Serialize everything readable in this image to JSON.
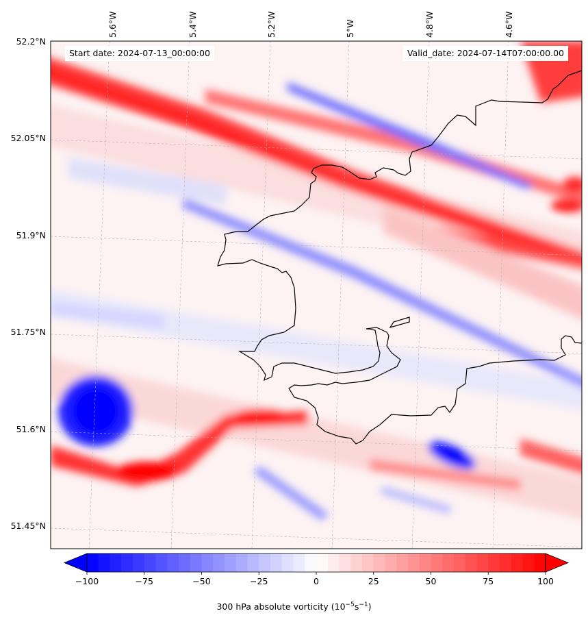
{
  "header": {
    "start_date": "Start date: 2024-07-13_00:00:00",
    "valid_date": "Valid_date: 2024-07-14T07:00:00.00"
  },
  "map": {
    "lon_labels": [
      "5.6°W",
      "5.4°W",
      "5.2°W",
      "5°W",
      "4.8°W",
      "4.6°W"
    ],
    "lat_labels": [
      "52.2°N",
      "52.05°N",
      "51.9°N",
      "51.75°N",
      "51.6°N",
      "51.45°N"
    ],
    "variable": "300 hPa absolute vorticity",
    "coastline_color": "#000000"
  },
  "colorbar": {
    "ticks": [
      "−100",
      "−75",
      "−50",
      "−25",
      "0",
      "25",
      "50",
      "75",
      "100"
    ],
    "min": -100,
    "max": 100,
    "extend": "both",
    "cmap": [
      "#0000ff",
      "#ffffff",
      "#ff0000"
    ],
    "label": "300 hPa absolute vorticity (10",
    "label_exp1": "−5",
    "label_mid": "s",
    "label_exp2": "−1",
    "label_end": ")"
  }
}
